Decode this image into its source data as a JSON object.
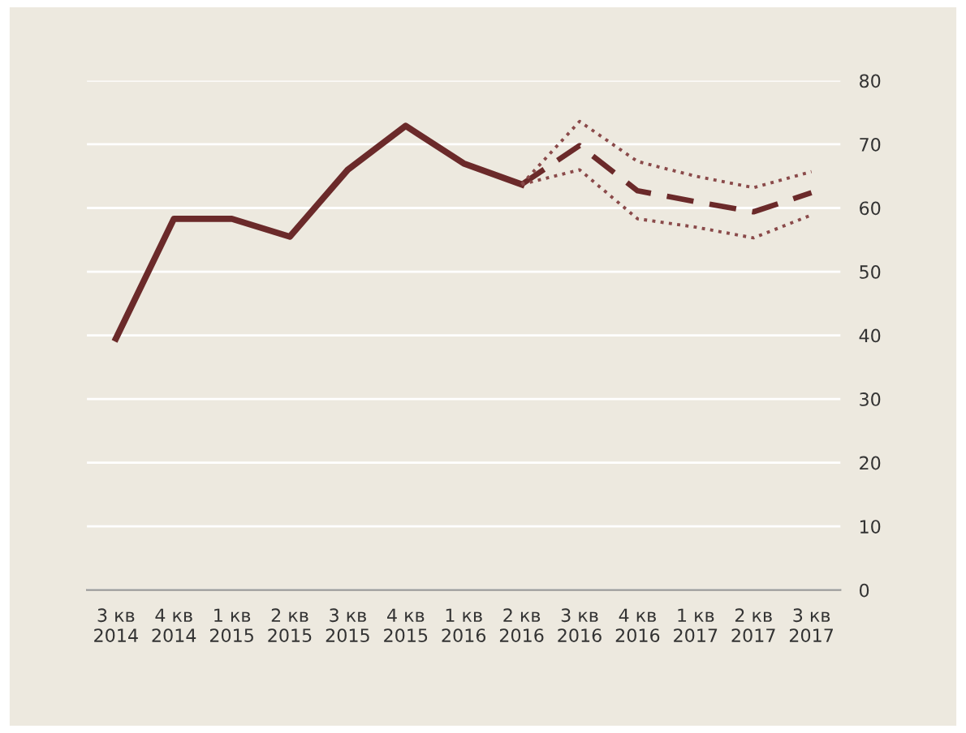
{
  "chart_data": {
    "type": "line",
    "categories": [
      "3 кв\n2014",
      "4 кв\n2014",
      "1 кв\n2015",
      "2 кв\n2015",
      "3 кв\n2015",
      "4 кв\n2015",
      "1 кв\n2016",
      "2 кв\n2016",
      "3 кв\n2016",
      "4 кв\n2016",
      "1 кв\n2017",
      "2 кв\n2017",
      "3 кв\n2017"
    ],
    "series": [
      {
        "color": "#6b2a2a",
        "line_style": "solid",
        "values": [
          39.5,
          58.3,
          58.3,
          55.5,
          66,
          72.9,
          67,
          63.7,
          null,
          null,
          null,
          null,
          null
        ]
      },
      {
        "color": "#6b2a2a",
        "line_style": "dashed",
        "values": [
          null,
          null,
          null,
          null,
          null,
          null,
          null,
          63.7,
          69.8,
          62.7,
          61,
          59.4,
          62.4
        ]
      },
      {
        "color": "#8a4a4a",
        "line_style": "dotted",
        "values": [
          null,
          null,
          null,
          null,
          null,
          null,
          null,
          63.7,
          73.6,
          67.3,
          65,
          63.2,
          65.7
        ]
      },
      {
        "color": "#8a4a4a",
        "line_style": "dotted",
        "values": [
          null,
          null,
          null,
          null,
          null,
          null,
          null,
          63.7,
          66,
          58.3,
          57,
          55.3,
          58.9
        ]
      }
    ],
    "ylim": [
      0,
      80
    ],
    "yticks": [
      0,
      10,
      20,
      30,
      40,
      50,
      60,
      70,
      80
    ],
    "grid": "y",
    "legend": false,
    "marker": "none"
  }
}
